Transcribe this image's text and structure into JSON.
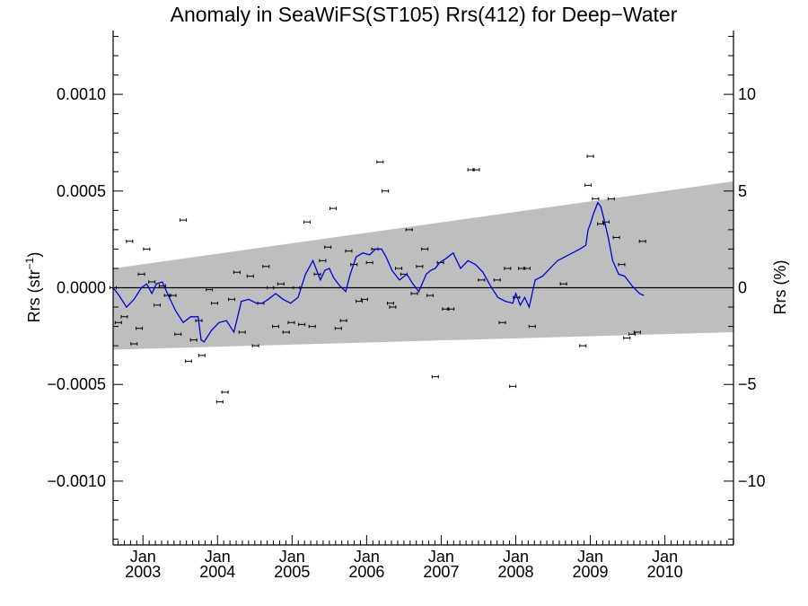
{
  "chart_data": {
    "type": "scatter",
    "title": "Anomaly in SeaWiFS(ST105) Rrs(412) for Deep−Water",
    "ylabel_left": "Rrs (str",
    "ylabel_left_sup": "−1",
    "ylabel_left_close": ")",
    "ylabel_right": "Rrs (%)",
    "grid": false,
    "xlim": [
      2002.6,
      2010.92
    ],
    "ylim": [
      -0.00133,
      0.00133
    ],
    "ylim_right": [
      -13.3,
      13.3
    ],
    "y_ticks": [
      {
        "value": 0.001,
        "label": "0.0010"
      },
      {
        "value": 0.0005,
        "label": "0.0005"
      },
      {
        "value": 0.0,
        "label": "0.0000"
      },
      {
        "value": -0.0005,
        "label": "−0.0005"
      },
      {
        "value": -0.001,
        "label": "−0.0010"
      }
    ],
    "y_right_ticks": [
      {
        "value": 10,
        "label": "10"
      },
      {
        "value": 5,
        "label": "5"
      },
      {
        "value": 0,
        "label": "0"
      },
      {
        "value": -5,
        "label": "−5"
      },
      {
        "value": -10,
        "label": "−10"
      }
    ],
    "x_ticks": [
      {
        "value": 2003.0,
        "month": "Jan",
        "year": "2003"
      },
      {
        "value": 2004.0,
        "month": "Jan",
        "year": "2004"
      },
      {
        "value": 2005.0,
        "month": "Jan",
        "year": "2005"
      },
      {
        "value": 2006.0,
        "month": "Jan",
        "year": "2006"
      },
      {
        "value": 2007.0,
        "month": "Jan",
        "year": "2007"
      },
      {
        "value": 2008.0,
        "month": "Jan",
        "year": "2008"
      },
      {
        "value": 2009.0,
        "month": "Jan",
        "year": "2009"
      },
      {
        "value": 2010.0,
        "month": "Jan",
        "year": "2010"
      }
    ],
    "band": {
      "x": [
        2002.6,
        2010.92
      ],
      "upper": [
        0.0001,
        0.00055
      ],
      "lower": [
        -0.00032,
        -0.00023
      ],
      "color": "#bebebe"
    },
    "zero_line": 0.0,
    "points": [
      {
        "x": 2002.6,
        "y": 0.0
      },
      {
        "x": 2002.67,
        "y": -0.00018
      },
      {
        "x": 2002.75,
        "y": -0.00015
      },
      {
        "x": 2002.82,
        "y": 0.00024
      },
      {
        "x": 2002.88,
        "y": -0.00029
      },
      {
        "x": 2002.95,
        "y": -0.00021
      },
      {
        "x": 2002.98,
        "y": 7e-05
      },
      {
        "x": 2003.05,
        "y": 0.0002
      },
      {
        "x": 2003.12,
        "y": 3e-05
      },
      {
        "x": 2003.19,
        "y": -9e-05
      },
      {
        "x": 2003.26,
        "y": 1e-05
      },
      {
        "x": 2003.33,
        "y": -4e-05
      },
      {
        "x": 2003.4,
        "y": -4e-05
      },
      {
        "x": 2003.47,
        "y": -0.00024
      },
      {
        "x": 2003.54,
        "y": 0.00035
      },
      {
        "x": 2003.61,
        "y": -0.00038
      },
      {
        "x": 2003.68,
        "y": -0.00027
      },
      {
        "x": 2003.75,
        "y": -0.00017
      },
      {
        "x": 2003.79,
        "y": -0.00035
      },
      {
        "x": 2003.89,
        "y": -1e-05
      },
      {
        "x": 2003.96,
        "y": -8e-05
      },
      {
        "x": 2004.03,
        "y": -0.00059
      },
      {
        "x": 2004.1,
        "y": -0.00054
      },
      {
        "x": 2004.19,
        "y": -6e-05
      },
      {
        "x": 2004.26,
        "y": 8e-05
      },
      {
        "x": 2004.33,
        "y": -0.00023
      },
      {
        "x": 2004.44,
        "y": 6e-05
      },
      {
        "x": 2004.51,
        "y": -0.0003
      },
      {
        "x": 2004.58,
        "y": -8e-05
      },
      {
        "x": 2004.65,
        "y": 0.00011
      },
      {
        "x": 2004.71,
        "y": 0.0
      },
      {
        "x": 2004.78,
        "y": -0.0002
      },
      {
        "x": 2004.85,
        "y": 2e-05
      },
      {
        "x": 2004.92,
        "y": -0.00023
      },
      {
        "x": 2004.99,
        "y": -0.00018
      },
      {
        "x": 2005.06,
        "y": 0.0
      },
      {
        "x": 2005.13,
        "y": -0.00019
      },
      {
        "x": 2005.2,
        "y": 0.00034
      },
      {
        "x": 2005.27,
        "y": -0.0002
      },
      {
        "x": 2005.34,
        "y": 7e-05
      },
      {
        "x": 2005.41,
        "y": 0.00014
      },
      {
        "x": 2005.48,
        "y": 0.00021
      },
      {
        "x": 2005.55,
        "y": 0.00041
      },
      {
        "x": 2005.62,
        "y": -0.00021
      },
      {
        "x": 2005.69,
        "y": -0.00017
      },
      {
        "x": 2005.76,
        "y": 0.00019
      },
      {
        "x": 2005.83,
        "y": 0.00012
      },
      {
        "x": 2005.9,
        "y": -7e-05
      },
      {
        "x": 2005.97,
        "y": -6e-05
      },
      {
        "x": 2006.04,
        "y": 0.00013
      },
      {
        "x": 2006.11,
        "y": 0.0002
      },
      {
        "x": 2006.18,
        "y": 0.00065
      },
      {
        "x": 2006.25,
        "y": 0.0005
      },
      {
        "x": 2006.32,
        "y": -8e-05
      },
      {
        "x": 2006.35,
        "y": -0.0001
      },
      {
        "x": 2006.43,
        "y": 0.0001
      },
      {
        "x": 2006.5,
        "y": 7e-05
      },
      {
        "x": 2006.57,
        "y": 0.0003
      },
      {
        "x": 2006.64,
        "y": -3e-05
      },
      {
        "x": 2006.71,
        "y": 0.00011
      },
      {
        "x": 2006.78,
        "y": 0.0002
      },
      {
        "x": 2006.85,
        "y": -4e-05
      },
      {
        "x": 2006.92,
        "y": -0.00046
      },
      {
        "x": 2006.99,
        "y": 0.00013
      },
      {
        "x": 2007.06,
        "y": -0.00011
      },
      {
        "x": 2007.13,
        "y": -0.00011
      },
      {
        "x": 2007.4,
        "y": 0.00061
      },
      {
        "x": 2007.47,
        "y": 0.00061
      },
      {
        "x": 2007.54,
        "y": 4e-05
      },
      {
        "x": 2007.75,
        "y": 4e-05
      },
      {
        "x": 2007.82,
        "y": -0.00018
      },
      {
        "x": 2007.89,
        "y": 0.0001
      },
      {
        "x": 2007.96,
        "y": -0.00051
      },
      {
        "x": 2008.01,
        "y": -5e-05
      },
      {
        "x": 2008.08,
        "y": 0.0001
      },
      {
        "x": 2008.15,
        "y": 0.0001
      },
      {
        "x": 2008.22,
        "y": -0.0002
      },
      {
        "x": 2008.64,
        "y": 2e-05
      },
      {
        "x": 2008.9,
        "y": -0.0003
      },
      {
        "x": 2008.97,
        "y": 0.00053
      },
      {
        "x": 2009.0,
        "y": 0.00068
      },
      {
        "x": 2009.07,
        "y": 0.00046
      },
      {
        "x": 2009.14,
        "y": 0.00033
      },
      {
        "x": 2009.21,
        "y": 0.00034
      },
      {
        "x": 2009.28,
        "y": 0.00046
      },
      {
        "x": 2009.35,
        "y": 0.00026
      },
      {
        "x": 2009.42,
        "y": 0.00012
      },
      {
        "x": 2009.49,
        "y": -0.00026
      },
      {
        "x": 2009.56,
        "y": -0.00024
      },
      {
        "x": 2009.63,
        "y": -0.00023
      },
      {
        "x": 2009.7,
        "y": 0.00024
      }
    ],
    "series": [
      {
        "color": "#0000dd",
        "x": [
          2002.6,
          2002.68,
          2002.78,
          2002.88,
          2002.98,
          2003.05,
          2003.12,
          2003.18,
          2003.26,
          2003.34,
          2003.44,
          2003.54,
          2003.64,
          2003.74,
          2003.78,
          2003.82,
          2003.92,
          2004.02,
          2004.12,
          2004.22,
          2004.32,
          2004.42,
          2004.52,
          2004.6,
          2004.68,
          2004.78,
          2004.88,
          2004.98,
          2005.08,
          2005.18,
          2005.28,
          2005.38,
          2005.44,
          2005.5,
          2005.56,
          2005.64,
          2005.72,
          2005.78,
          2005.86,
          2005.95,
          2006.04,
          2006.12,
          2006.2,
          2006.26,
          2006.34,
          2006.44,
          2006.54,
          2006.62,
          2006.7,
          2006.8,
          2006.86,
          2006.92,
          2006.98,
          2007.06,
          2007.16,
          2007.26,
          2007.36,
          2007.46,
          2007.56,
          2007.66,
          2007.76,
          2007.86,
          2007.96,
          2008.0,
          2008.06,
          2008.12,
          2008.18,
          2008.26,
          2008.36,
          2008.46,
          2008.56,
          2008.66,
          2008.76,
          2008.86,
          2008.94,
          2008.97,
          2009.0,
          2009.04,
          2009.1,
          2009.14,
          2009.18,
          2009.24,
          2009.3,
          2009.38,
          2009.46,
          2009.56,
          2009.66,
          2009.72
        ],
        "y": [
          0.0,
          -4e-05,
          -0.0001,
          -6e-05,
          0.0,
          2e-05,
          -3e-05,
          2e-05,
          3e-05,
          -4e-05,
          -0.00012,
          -0.00018,
          -0.00015,
          -0.00015,
          -0.00027,
          -0.00028,
          -0.00022,
          -0.00018,
          -0.00017,
          -0.00023,
          -7e-05,
          -6e-05,
          -8e-05,
          -8e-05,
          -6e-05,
          -3e-05,
          -6e-05,
          -8e-05,
          -5e-05,
          7e-05,
          0.00014,
          4e-05,
          9e-05,
          0.0001,
          5e-05,
          1e-05,
          -2e-05,
          7e-05,
          0.00016,
          0.00018,
          0.00017,
          0.0002,
          0.0002,
          0.00016,
          9e-05,
          4e-05,
          7e-05,
          2e-05,
          -2e-05,
          7e-05,
          9e-05,
          0.0001,
          0.00013,
          0.00015,
          0.00018,
          0.0001,
          0.00014,
          0.00012,
          8e-05,
          1e-05,
          -5e-05,
          -7e-05,
          -8e-05,
          -3e-05,
          -9e-05,
          -5e-05,
          -0.0001,
          4e-05,
          6e-05,
          0.0001,
          0.00014,
          0.00016,
          0.00018,
          0.0002,
          0.00022,
          0.0003,
          0.00033,
          0.00038,
          0.00044,
          0.00042,
          0.00036,
          0.00026,
          0.00014,
          7e-05,
          6e-05,
          1e-05,
          -3e-05,
          -4e-05
        ]
      }
    ]
  }
}
